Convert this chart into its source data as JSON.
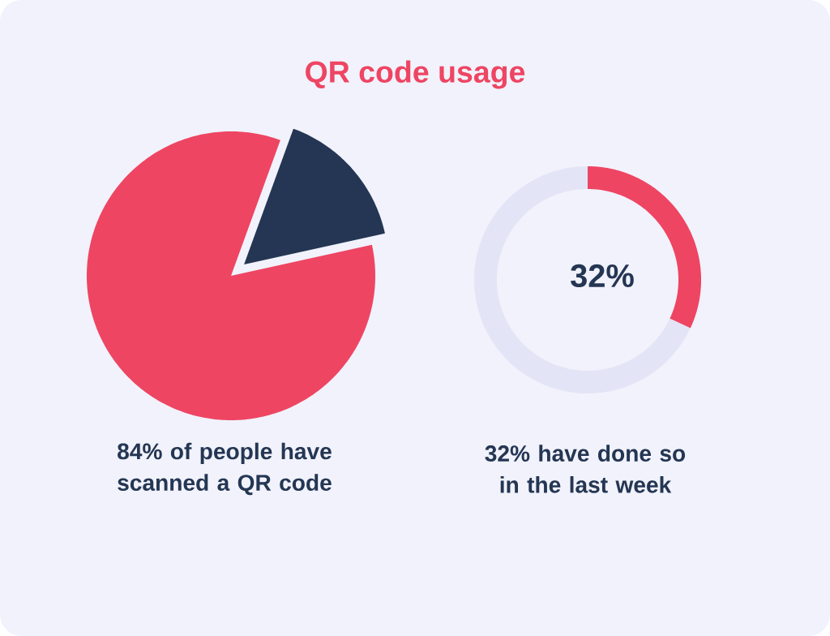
{
  "chart_data": [
    {
      "type": "pie",
      "title": "QR code usage",
      "categories": [
        null,
        null
      ],
      "values": [
        84,
        16
      ],
      "colors": [
        "#ee4563",
        "#243653"
      ],
      "annotations": [
        "84% of people have scanned a QR code"
      ]
    },
    {
      "type": "donut",
      "categories": [
        null,
        null
      ],
      "values": [
        32,
        68
      ],
      "colors": [
        "#ee4563",
        "#e4e4f7"
      ],
      "annotations": [
        "32%",
        "32% have done so in the last week"
      ]
    }
  ]
}
